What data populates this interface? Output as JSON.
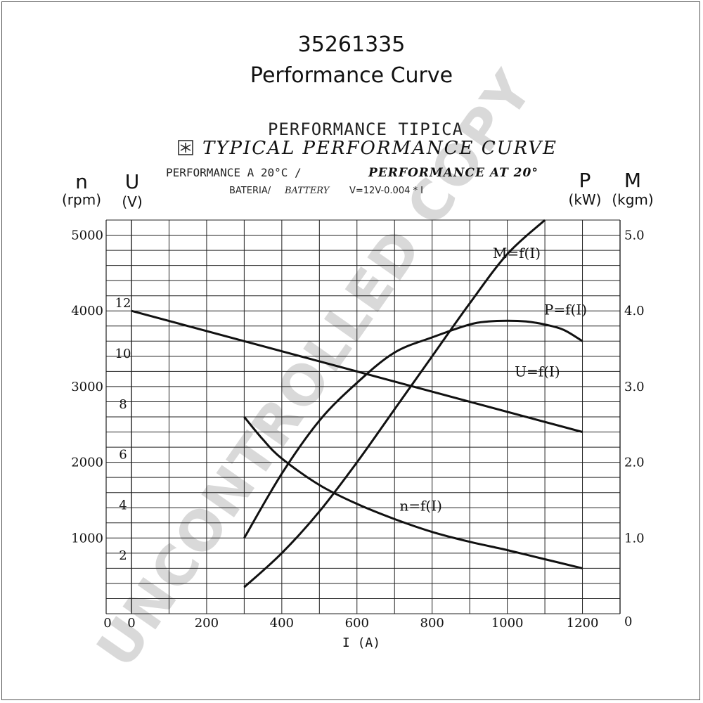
{
  "header": {
    "part_number": "35261335",
    "subtitle": "Performance Curve",
    "heading_es": "PERFORMANCE TIPICA",
    "heading_en": "TYPICAL PERFORMANCE CURVE",
    "conditions_es": "PERFORMANCE A 20°C /",
    "conditions_en": "PERFORMANCE AT 20°",
    "battery_es": "BATERIA/",
    "battery_en": "BATTERY",
    "battery_formula": "V=12V-0.004 * I"
  },
  "watermark": "UNCONTROLLED COPY",
  "colors": {
    "ink": "#111111",
    "grid": "#222222",
    "watermark": "#d9d9d9"
  },
  "axes": {
    "n": {
      "symbol": "n",
      "unit": "(rpm)"
    },
    "U": {
      "symbol": "U",
      "unit": "(V)"
    },
    "P": {
      "symbol": "P",
      "unit": "(kW)"
    },
    "M": {
      "symbol": "M",
      "unit": "(kgm)"
    },
    "x": {
      "label": "I (A)"
    }
  },
  "chart_data": {
    "type": "line",
    "title": "TYPICAL PERFORMANCE CURVE",
    "xlabel": "I (A)",
    "xlim": [
      0,
      1300
    ],
    "x_ticks": [
      0,
      200,
      400,
      600,
      800,
      1000,
      1200
    ],
    "grid": true,
    "left_axes": [
      {
        "name": "n",
        "unit": "(rpm)",
        "range": [
          0,
          5200
        ],
        "ticks": [
          0,
          1000,
          2000,
          3000,
          4000,
          5000
        ]
      },
      {
        "name": "U",
        "unit": "(V)",
        "range": [
          0,
          15.6
        ],
        "ticks": [
          2,
          4,
          6,
          8,
          10,
          12
        ]
      }
    ],
    "right_axes": [
      {
        "name": "P",
        "unit": "(kW)",
        "range": [
          0,
          5.2
        ],
        "ticks": [
          0,
          1.0,
          2.0,
          3.0,
          4.0,
          5.0
        ]
      },
      {
        "name": "M",
        "unit": "(kgm)",
        "range": [
          0,
          5.2
        ]
      }
    ],
    "series": [
      {
        "name": "U=f(I)",
        "axis": "U",
        "x": [
          0,
          300,
          1200
        ],
        "y": [
          12.0,
          10.8,
          7.2
        ]
      },
      {
        "name": "n=f(I)",
        "axis": "n",
        "x": [
          300,
          350,
          400,
          500,
          600,
          700,
          800,
          900,
          1000,
          1100,
          1200
        ],
        "y": [
          2600,
          2300,
          2050,
          1700,
          1450,
          1250,
          1080,
          950,
          840,
          720,
          600
        ]
      },
      {
        "name": "P=f(I)",
        "axis": "P",
        "x": [
          300,
          400,
          500,
          600,
          700,
          800,
          900,
          950,
          1000,
          1050,
          1100,
          1150,
          1200
        ],
        "y": [
          1.0,
          1.85,
          2.55,
          3.05,
          3.45,
          3.65,
          3.82,
          3.86,
          3.87,
          3.86,
          3.82,
          3.75,
          3.6
        ]
      },
      {
        "name": "M=f(I)",
        "axis": "M",
        "x": [
          300,
          400,
          500,
          600,
          700,
          800,
          900,
          1000,
          1100
        ],
        "y": [
          0.35,
          0.8,
          1.35,
          2.0,
          2.7,
          3.4,
          4.1,
          4.75,
          5.2
        ]
      }
    ]
  }
}
